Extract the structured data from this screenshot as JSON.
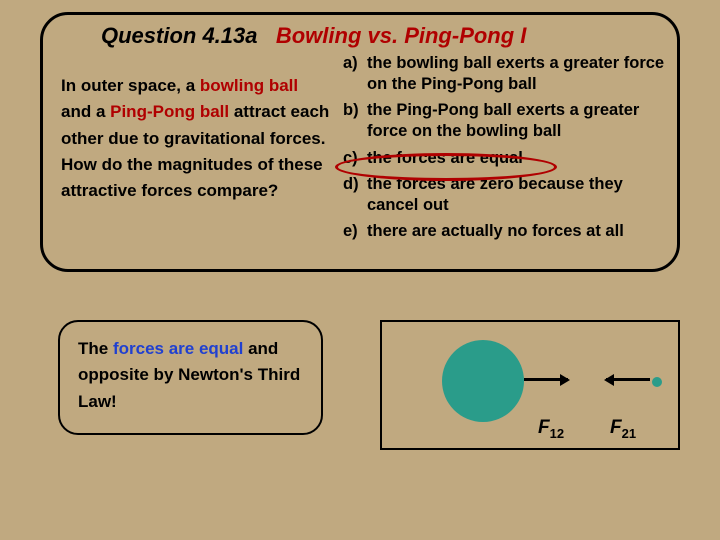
{
  "title": {
    "left": "Question 4.13a",
    "right": "Bowling vs. Ping-Pong I"
  },
  "prompt": {
    "line1_pre": "In outer space, a ",
    "line1_hl": "bowling ball",
    "line1_post": " and a ",
    "line1_hl2": "Ping-Pong ball",
    "line2": " attract each other due to gravitational forces. How do the magnitudes of these attractive forces compare?"
  },
  "choices": [
    {
      "label": "a)",
      "text": "the bowling ball exerts a greater force on the Ping-Pong ball"
    },
    {
      "label": "b)",
      "text": "the Ping-Pong ball exerts a greater force on the bowling ball"
    },
    {
      "label": "c)",
      "text": "the forces are equal"
    },
    {
      "label": "d)",
      "text": "the forces are zero because they cancel out"
    },
    {
      "label": "e)",
      "text": "there are actually no forces at all"
    }
  ],
  "answer": {
    "pre": "The ",
    "hl": "forces are equal",
    "post": " and opposite by Newton's Third Law!"
  },
  "diagram": {
    "f12_base": "F",
    "f12_sub": "12",
    "f21_base": "F",
    "f21_sub": "21",
    "big_ball_color": "#2a9c8a",
    "small_ball_color": "#2a9c8a"
  },
  "colors": {
    "bg": "#c0a980",
    "accent_red": "#b00000",
    "accent_blue": "#2040d0"
  }
}
